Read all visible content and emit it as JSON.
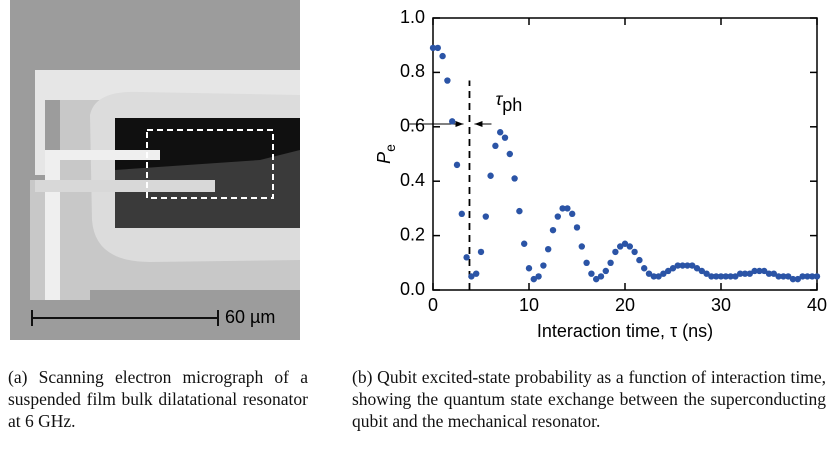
{
  "figure": {
    "scale_label": "60 µm",
    "captions": [
      "(a) Scanning electron micrograph of a suspended film bulk dilatational resonator at 6 GHz.",
      "(b) Qubit excited-state probability as a function of interaction time, showing the quantum state exchange between the superconducting qubit and the mechanical resonator."
    ]
  },
  "chart_data": {
    "type": "scatter",
    "xlabel": "Interaction time, τ (ns)",
    "ylabel": {
      "main": "P",
      "sub": "e"
    },
    "color": "#2b54a6",
    "xlim": [
      0,
      40
    ],
    "ylim": [
      0,
      1
    ],
    "xticks": [
      0,
      10,
      20,
      30,
      40
    ],
    "yticks": [
      {
        "value": 0,
        "label": "0.0"
      },
      0.2,
      0.4,
      0.6,
      0.8,
      {
        "value": 1,
        "label": "1.0"
      }
    ],
    "annotation": {
      "main": "τ",
      "sub": "ph",
      "x": 3.8,
      "y": [
        0,
        0.77
      ]
    },
    "x": [
      0,
      0.5,
      1,
      1.5,
      2,
      2.5,
      3,
      3.5,
      4,
      4.5,
      5,
      5.5,
      6,
      6.5,
      7,
      7.5,
      8,
      8.5,
      9,
      9.5,
      10,
      10.5,
      11,
      11.5,
      12,
      12.5,
      13,
      13.5,
      14,
      14.5,
      15,
      15.5,
      16,
      16.5,
      17,
      17.5,
      18,
      18.5,
      19,
      19.5,
      20,
      20.5,
      21,
      21.5,
      22,
      22.5,
      23,
      23.5,
      24,
      24.5,
      25,
      25.5,
      26,
      26.5,
      27,
      27.5,
      28,
      28.5,
      29,
      29.5,
      30,
      30.5,
      31,
      31.5,
      32,
      32.5,
      33,
      33.5,
      34,
      34.5,
      35,
      35.5,
      36,
      36.5,
      37,
      37.5,
      38,
      38.5,
      39,
      39.5,
      40
    ],
    "values": [
      0.89,
      0.89,
      0.86,
      0.77,
      0.62,
      0.46,
      0.28,
      0.12,
      0.05,
      0.06,
      0.14,
      0.27,
      0.42,
      0.53,
      0.58,
      0.56,
      0.5,
      0.41,
      0.29,
      0.17,
      0.08,
      0.04,
      0.05,
      0.09,
      0.15,
      0.22,
      0.27,
      0.3,
      0.3,
      0.28,
      0.23,
      0.16,
      0.1,
      0.06,
      0.04,
      0.05,
      0.07,
      0.1,
      0.14,
      0.16,
      0.17,
      0.16,
      0.14,
      0.11,
      0.08,
      0.06,
      0.05,
      0.05,
      0.06,
      0.07,
      0.08,
      0.09,
      0.09,
      0.09,
      0.09,
      0.08,
      0.07,
      0.06,
      0.05,
      0.05,
      0.05,
      0.05,
      0.05,
      0.05,
      0.06,
      0.06,
      0.06,
      0.07,
      0.07,
      0.07,
      0.06,
      0.06,
      0.05,
      0.05,
      0.05,
      0.04,
      0.04,
      0.05,
      0.05,
      0.05,
      0.05
    ]
  }
}
